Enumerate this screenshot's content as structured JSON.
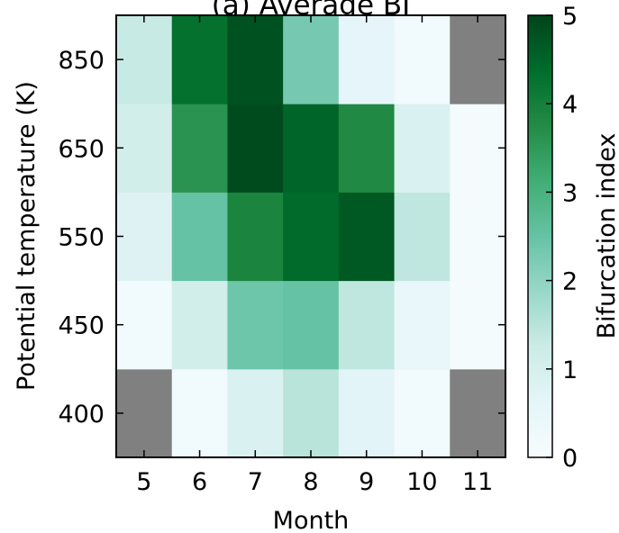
{
  "chart_data": {
    "type": "heatmap",
    "title": "(a) Average BI",
    "xlabel": "Month",
    "ylabel": "Potential temperature (K)",
    "colorbar_label": "Bifurcation index",
    "x_categories": [
      "5",
      "6",
      "7",
      "8",
      "9",
      "10",
      "11"
    ],
    "y_categories": [
      "400",
      "450",
      "550",
      "650",
      "850"
    ],
    "values": [
      [
        null,
        0.2,
        0.9,
        1.5,
        0.7,
        0.2,
        null
      ],
      [
        0.2,
        1.1,
        2.4,
        2.5,
        1.4,
        0.5,
        0.1
      ],
      [
        0.8,
        2.5,
        3.9,
        4.4,
        4.7,
        1.4,
        0.1
      ],
      [
        1.1,
        3.6,
        4.9,
        4.5,
        3.8,
        0.9,
        0.1
      ],
      [
        1.3,
        4.3,
        4.8,
        2.3,
        0.6,
        0.2,
        null
      ]
    ],
    "missing_color": "#808080",
    "colorscale": "BuGn",
    "colorbar_range": [
      0,
      5
    ],
    "colorbar_ticks": [
      "0",
      "1",
      "2",
      "3",
      "4",
      "5"
    ]
  }
}
